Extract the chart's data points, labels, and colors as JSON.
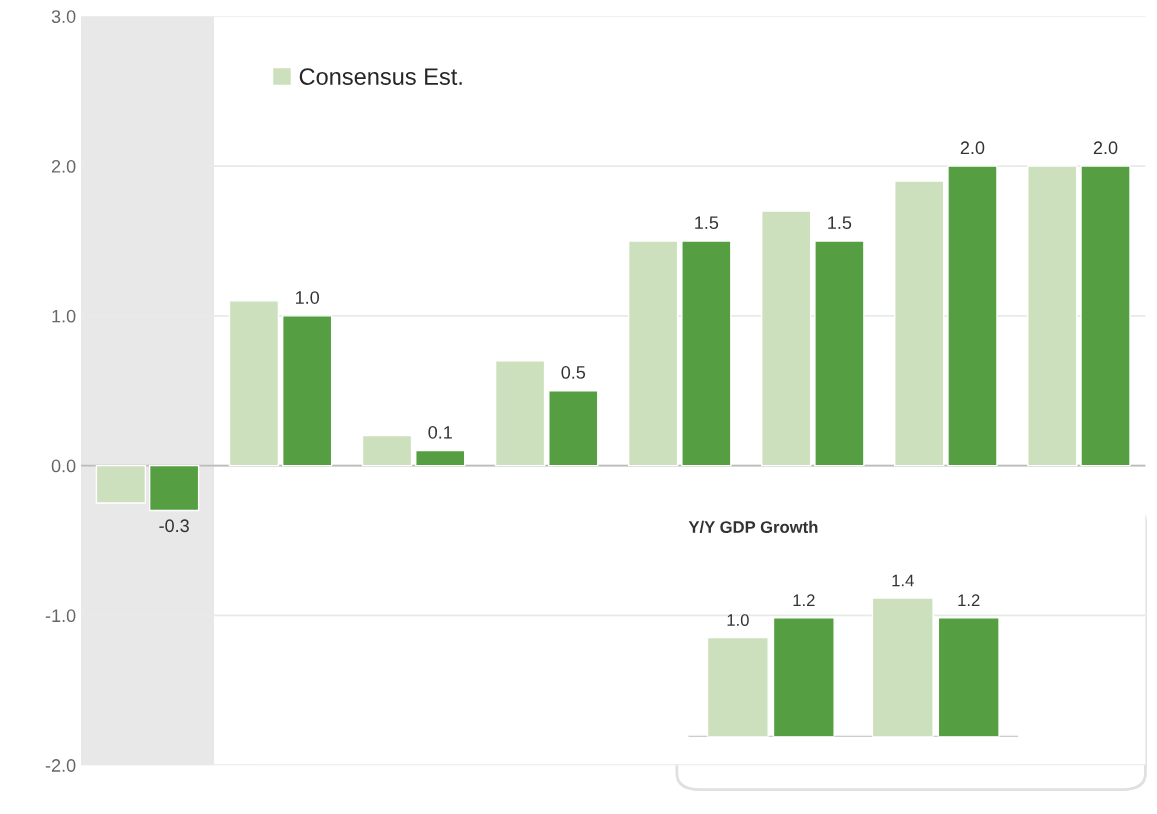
{
  "chart_data": [
    {
      "type": "bar",
      "categories": [
        null,
        null,
        null,
        null,
        null,
        null,
        null,
        null
      ],
      "series": [
        {
          "name": "Consensus Est.",
          "color": "#cce0bd",
          "values": [
            -0.25,
            1.1,
            0.2,
            0.7,
            1.5,
            1.7,
            1.9,
            2.0
          ]
        },
        {
          "color": "#559e42",
          "values": [
            -0.3,
            1.0,
            0.1,
            0.5,
            1.5,
            1.5,
            2.0,
            2.0
          ],
          "value_labels": [
            "-0.3",
            "1.0",
            "0.1",
            "0.5",
            "1.5",
            "1.5",
            "2.0",
            "2.0"
          ]
        }
      ],
      "ylim": [
        -2,
        3
      ],
      "yticks": [
        {
          "value": -2,
          "label": "-2.0"
        },
        {
          "value": -1,
          "label": "-1.0"
        },
        {
          "value": 0,
          "label": "0.0"
        },
        {
          "value": 1,
          "label": "1.0"
        },
        {
          "value": 2,
          "label": "2.0"
        },
        {
          "value": 3,
          "label": "3.0"
        }
      ],
      "grid": "y",
      "legend": "top left"
    },
    {
      "type": "bar",
      "title": "Y/Y GDP Growth",
      "categories": [
        null,
        null
      ],
      "series": [
        {
          "color": "#cce0bd",
          "values": [
            1.0,
            1.4
          ],
          "value_labels": [
            "1.0",
            "1.4"
          ]
        },
        {
          "color": "#559e42",
          "values": [
            1.2,
            1.2
          ],
          "value_labels": [
            "1.2",
            "1.2"
          ]
        }
      ]
    }
  ]
}
